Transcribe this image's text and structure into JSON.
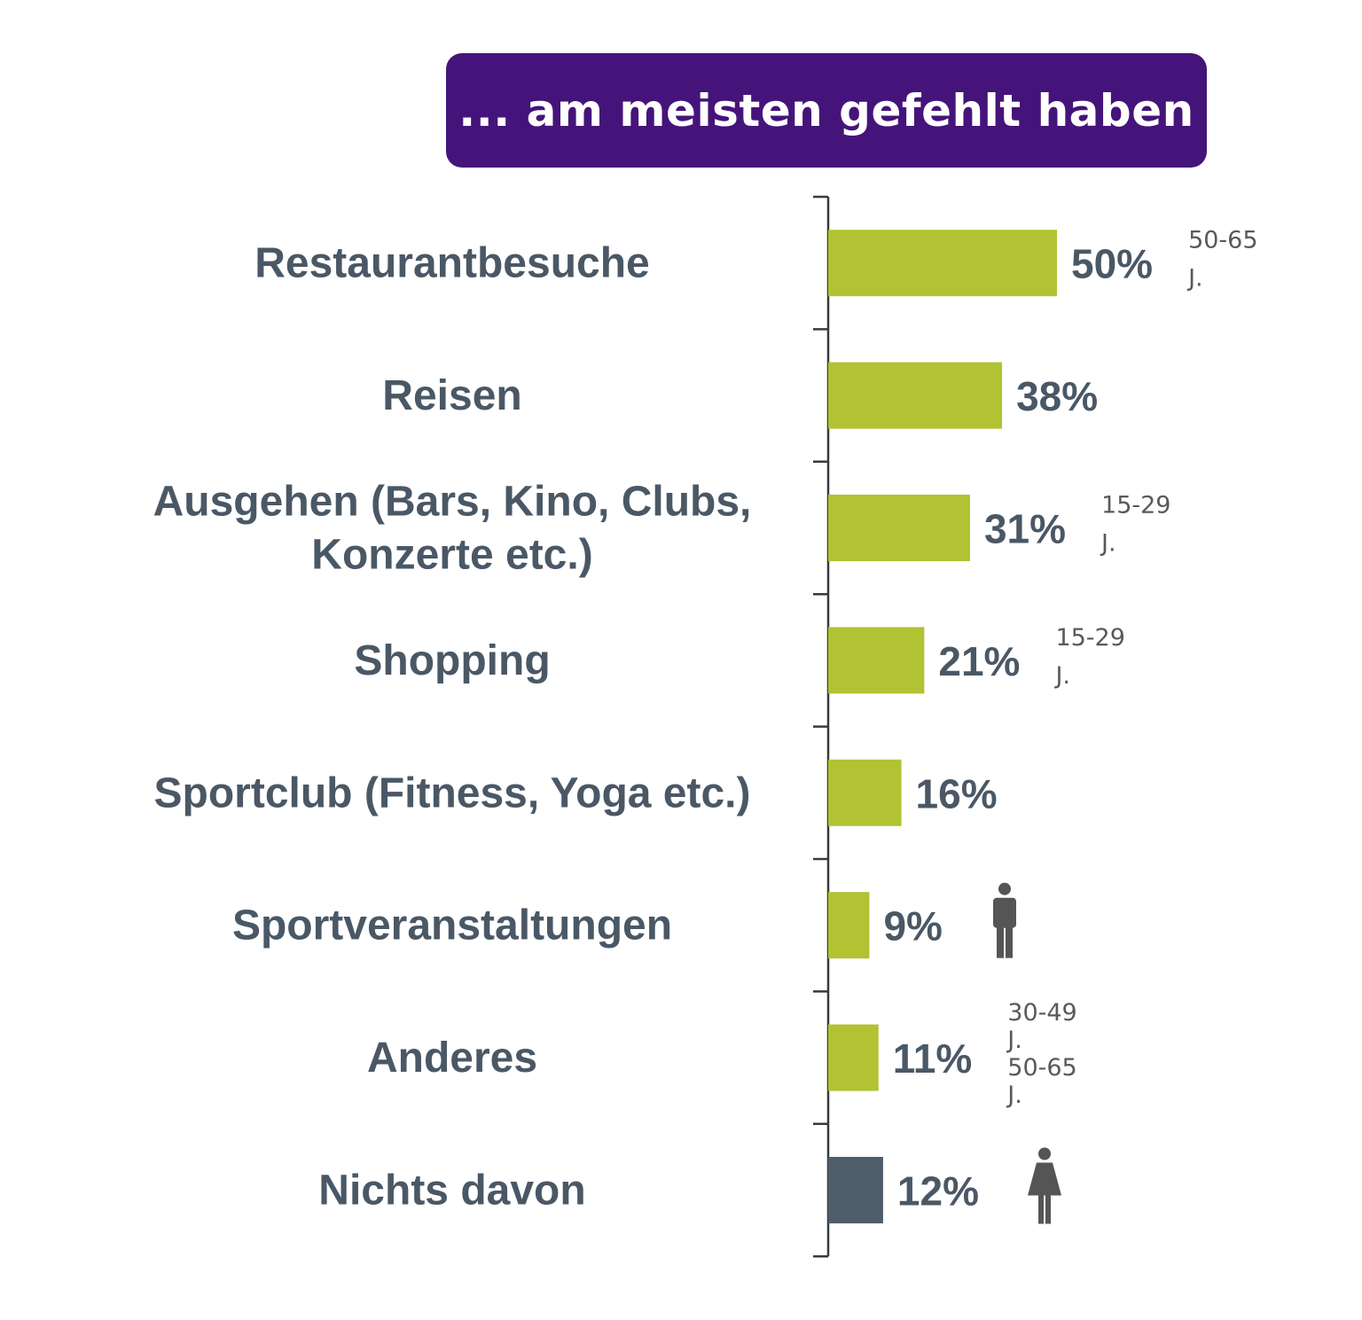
{
  "chart_data": {
    "type": "bar",
    "orientation": "horizontal",
    "title": "... am meisten gefehlt haben",
    "categories": [
      [
        "Restaurantbesuche"
      ],
      [
        "Reisen"
      ],
      [
        "Ausgehen (Bars, Kino, Clubs,",
        "Konzerte etc.)"
      ],
      [
        "Shopping"
      ],
      [
        "Sportclub (Fitness, Yoga etc.)"
      ],
      [
        "Sportveranstaltungen"
      ],
      [
        "Anderes"
      ],
      [
        "Nichts davon"
      ]
    ],
    "values": [
      50,
      38,
      31,
      21,
      16,
      9,
      11,
      12
    ],
    "value_labels": [
      "50%",
      "38%",
      "31%",
      "21%",
      "16%",
      "9%",
      "11%",
      "12%"
    ],
    "annotations": [
      [
        "50-65",
        "J."
      ],
      [],
      [
        "15-29",
        "J."
      ],
      [
        "15-29",
        "J."
      ],
      [],
      [],
      [
        "30-49",
        "J.",
        "50-65",
        "J."
      ],
      []
    ],
    "icons": [
      null,
      null,
      null,
      null,
      null,
      "male-icon",
      null,
      "female-icon"
    ],
    "colors": [
      "#b1c232",
      "#b1c232",
      "#b1c232",
      "#b1c232",
      "#b1c232",
      "#b1c232",
      "#b1c232",
      "#4f5d6a"
    ],
    "xlim": [
      0,
      60
    ],
    "grid": false
  }
}
